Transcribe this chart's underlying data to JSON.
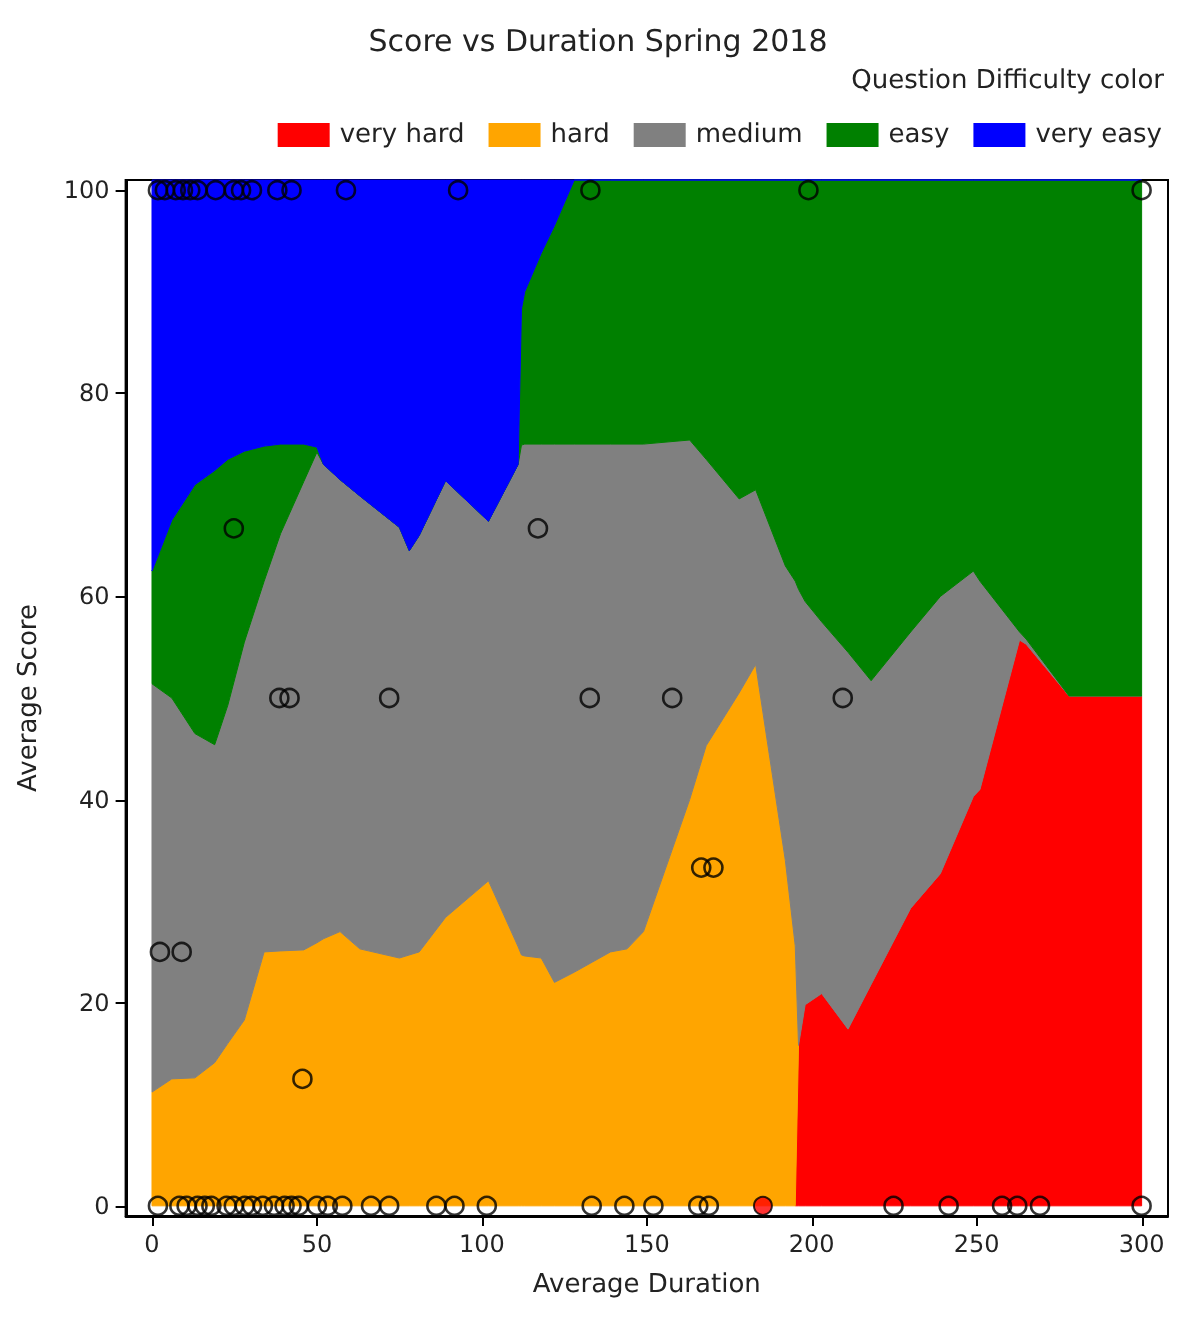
{
  "chart_data": {
    "type": "area",
    "title": "Score vs Duration Spring 2018",
    "xlabel": "Average Duration",
    "ylabel": "Average Score",
    "legend_title": "Question Difficulty color",
    "legend": "top right",
    "stacked": true,
    "grid": false,
    "xlim": [
      -8,
      308
    ],
    "xticks": [
      0,
      50,
      100,
      150,
      200,
      250,
      300
    ],
    "ylim": [
      -1,
      101
    ],
    "yticks": [
      0,
      20,
      40,
      60,
      80,
      100
    ],
    "x": [
      0,
      6,
      13,
      19,
      23,
      28,
      34,
      39,
      46,
      50,
      52,
      57,
      63,
      75,
      78,
      81,
      89,
      102,
      111,
      112,
      113,
      118,
      122,
      128,
      139,
      144,
      149,
      163,
      168,
      178,
      183,
      192,
      195,
      196,
      198,
      203,
      211,
      218,
      230,
      239,
      249,
      251,
      263,
      265,
      278,
      300
    ],
    "series": [
      {
        "name": "very hard",
        "color": "#ff0000",
        "values": [
          null,
          null,
          null,
          null,
          null,
          null,
          null,
          null,
          null,
          null,
          null,
          null,
          null,
          null,
          null,
          null,
          null,
          null,
          null,
          null,
          null,
          null,
          null,
          null,
          null,
          null,
          null,
          null,
          null,
          null,
          null,
          null,
          0,
          15.8,
          19.8,
          20.9,
          17.4,
          21.8,
          29.3,
          32.7,
          40.3,
          41,
          55.7,
          55.3,
          50.2,
          50.2
        ]
      },
      {
        "name": "hard",
        "color": "#ffa500",
        "values": [
          11.2,
          12.5,
          12.6,
          14.1,
          16,
          18.3,
          25,
          25.1,
          25.2,
          25.9,
          26.3,
          27,
          25.3,
          24.4,
          24.7,
          25,
          28.4,
          32,
          25.5,
          24.7,
          24.6,
          24.4,
          22,
          23,
          25,
          25.3,
          27,
          40,
          45.3,
          50.5,
          53.3,
          34,
          25.6,
          0,
          null,
          null,
          null,
          null,
          null,
          null,
          null,
          null,
          null,
          null,
          null,
          null
        ]
      },
      {
        "name": "medium",
        "color": "#808080",
        "values": [
          40.2,
          37.5,
          33.9,
          31.3,
          33.3,
          37.2,
          36.5,
          41.1,
          46.1,
          48.3,
          46.7,
          44.5,
          44.6,
          42.4,
          39.8,
          41,
          43,
          35.4,
          47.5,
          50.2,
          50.4,
          50.6,
          53,
          52,
          50,
          49.7,
          48,
          35.4,
          28.2,
          19.1,
          17.2,
          29,
          35.9,
          44.9,
          39.7,
          36.6,
          37.1,
          29.9,
          27.2,
          27.3,
          22.2,
          20.5,
          0.8,
          0.5,
          0,
          0
        ]
      },
      {
        "name": "easy",
        "color": "#008000",
        "values": [
          11.1,
          17.5,
          24.5,
          27,
          24.2,
          18.8,
          13.3,
          8.8,
          3.7,
          0.5,
          0,
          0,
          0,
          0,
          0,
          0,
          0,
          0,
          0,
          13.4,
          15,
          18.8,
          21.5,
          26,
          26,
          26,
          26,
          25.6,
          27.5,
          31.4,
          30.5,
          38,
          39.5,
          40.3,
          41.5,
          43.5,
          46.5,
          49.3,
          44.5,
          41,
          38.5,
          39.5,
          44.5,
          45.2,
          50.8,
          50.8
        ]
      },
      {
        "name": "very easy",
        "color": "#0000ff",
        "values": [
          38.5,
          33.5,
          30,
          28.6,
          27.5,
          26.7,
          26.2,
          26,
          26,
          26.3,
          28,
          29.5,
          31.1,
          34.2,
          36.5,
          35,
          29.6,
          33.6,
          28,
          12.7,
          11,
          7.2,
          4.5,
          0,
          0,
          0,
          0,
          0,
          0,
          0,
          0,
          0,
          0,
          0,
          0,
          0,
          0,
          0,
          0,
          0,
          0,
          0,
          0,
          0,
          0,
          0
        ]
      },
      {
        "type": "scatter",
        "marker": "circle",
        "color": "#000000",
        "x": [
          1.8,
          3.9,
          7.2,
          9.4,
          11.6,
          13.8,
          19.3,
          24.8,
          27,
          30.3,
          38,
          42.3,
          58.8,
          92.8,
          132.9,
          199,
          300,
          1.8,
          8.3,
          10.5,
          13.8,
          16,
          18,
          22.6,
          24.8,
          28.1,
          30.3,
          33.6,
          37,
          40.2,
          42.3,
          44.5,
          50,
          53.3,
          57.7,
          66.4,
          71.9,
          86.2,
          91.7,
          101.5,
          133.3,
          143.2,
          152,
          165.6,
          168.8,
          224.8,
          241.5,
          257.7,
          262.3,
          269.2,
          300,
          24.8,
          117,
          38.6,
          41.7,
          71.9,
          132.7,
          157.7,
          209.4,
          166.5,
          170.2,
          2.4,
          9,
          45.6
        ],
        "values": [
          100,
          100,
          100,
          100,
          100,
          100,
          100,
          100,
          100,
          100,
          100,
          100,
          100,
          100,
          100,
          100,
          100,
          0,
          0,
          0,
          0,
          0,
          0,
          0,
          0,
          0,
          0,
          0,
          0,
          0,
          0,
          0,
          0,
          0,
          0,
          0,
          0,
          0,
          0,
          0,
          0,
          0,
          0,
          0,
          0,
          0,
          0,
          0,
          0,
          0,
          0,
          66.7,
          66.7,
          50,
          50,
          50,
          50,
          50,
          50,
          33.3,
          33.3,
          25,
          25,
          12.5
        ]
      },
      {
        "type": "scatter",
        "marker": "circle",
        "color": "#ff0000",
        "x": [
          185.2
        ],
        "values": [
          0
        ]
      }
    ]
  }
}
